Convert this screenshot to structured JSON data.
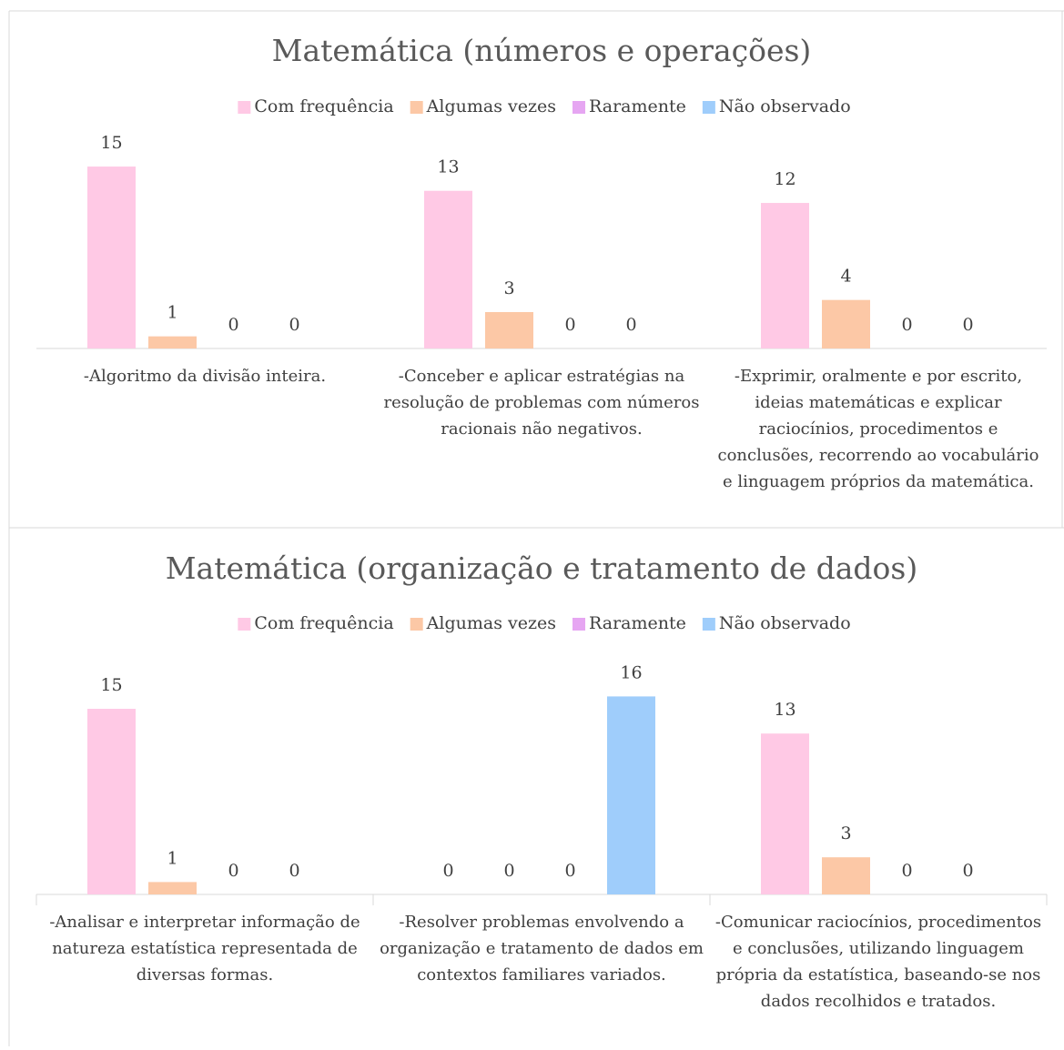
{
  "chart_data": [
    {
      "type": "bar",
      "title": "Matemática (números e operações)",
      "categories": [
        "-Algoritmo da divisão inteira.",
        "-Conceber e aplicar estratégias na resolução de problemas com números racionais não negativos.",
        "-Exprimir, oralmente e por escrito, ideias matemáticas e explicar raciocínios, procedimentos e conclusões, recorrendo ao vocabulário e linguagem próprios da matemática."
      ],
      "series": [
        {
          "name": "Com frequência",
          "color": "#ffc9e5",
          "values": [
            15,
            13,
            12
          ]
        },
        {
          "name": "Algumas vezes",
          "color": "#fcc8a6",
          "values": [
            1,
            3,
            4
          ]
        },
        {
          "name": "Raramente",
          "color": "#e6a6f2",
          "values": [
            0,
            0,
            0
          ]
        },
        {
          "name": "Não observado",
          "color": "#9fcdfb",
          "values": [
            0,
            0,
            0
          ]
        }
      ],
      "legend": "top"
    },
    {
      "type": "bar",
      "title": "Matemática (organização e tratamento de dados)",
      "categories": [
        "-Analisar e interpretar informação de natureza estatística representada de diversas formas.",
        "-Resolver problemas envolvendo a organização e tratamento de dados em contextos familiares variados.",
        "-Comunicar raciocínios, procedimentos e conclusões, utilizando linguagem própria da estatística, baseando-se nos dados recolhidos e tratados."
      ],
      "series": [
        {
          "name": "Com frequência",
          "color": "#ffc9e5",
          "values": [
            15,
            0,
            13
          ]
        },
        {
          "name": "Algumas vezes",
          "color": "#fcc8a6",
          "values": [
            1,
            0,
            3
          ]
        },
        {
          "name": "Raramente",
          "color": "#e6a6f2",
          "values": [
            0,
            0,
            0
          ]
        },
        {
          "name": "Não observado",
          "color": "#9fcdfb",
          "values": [
            0,
            16,
            0
          ]
        }
      ],
      "legend": "top"
    }
  ]
}
